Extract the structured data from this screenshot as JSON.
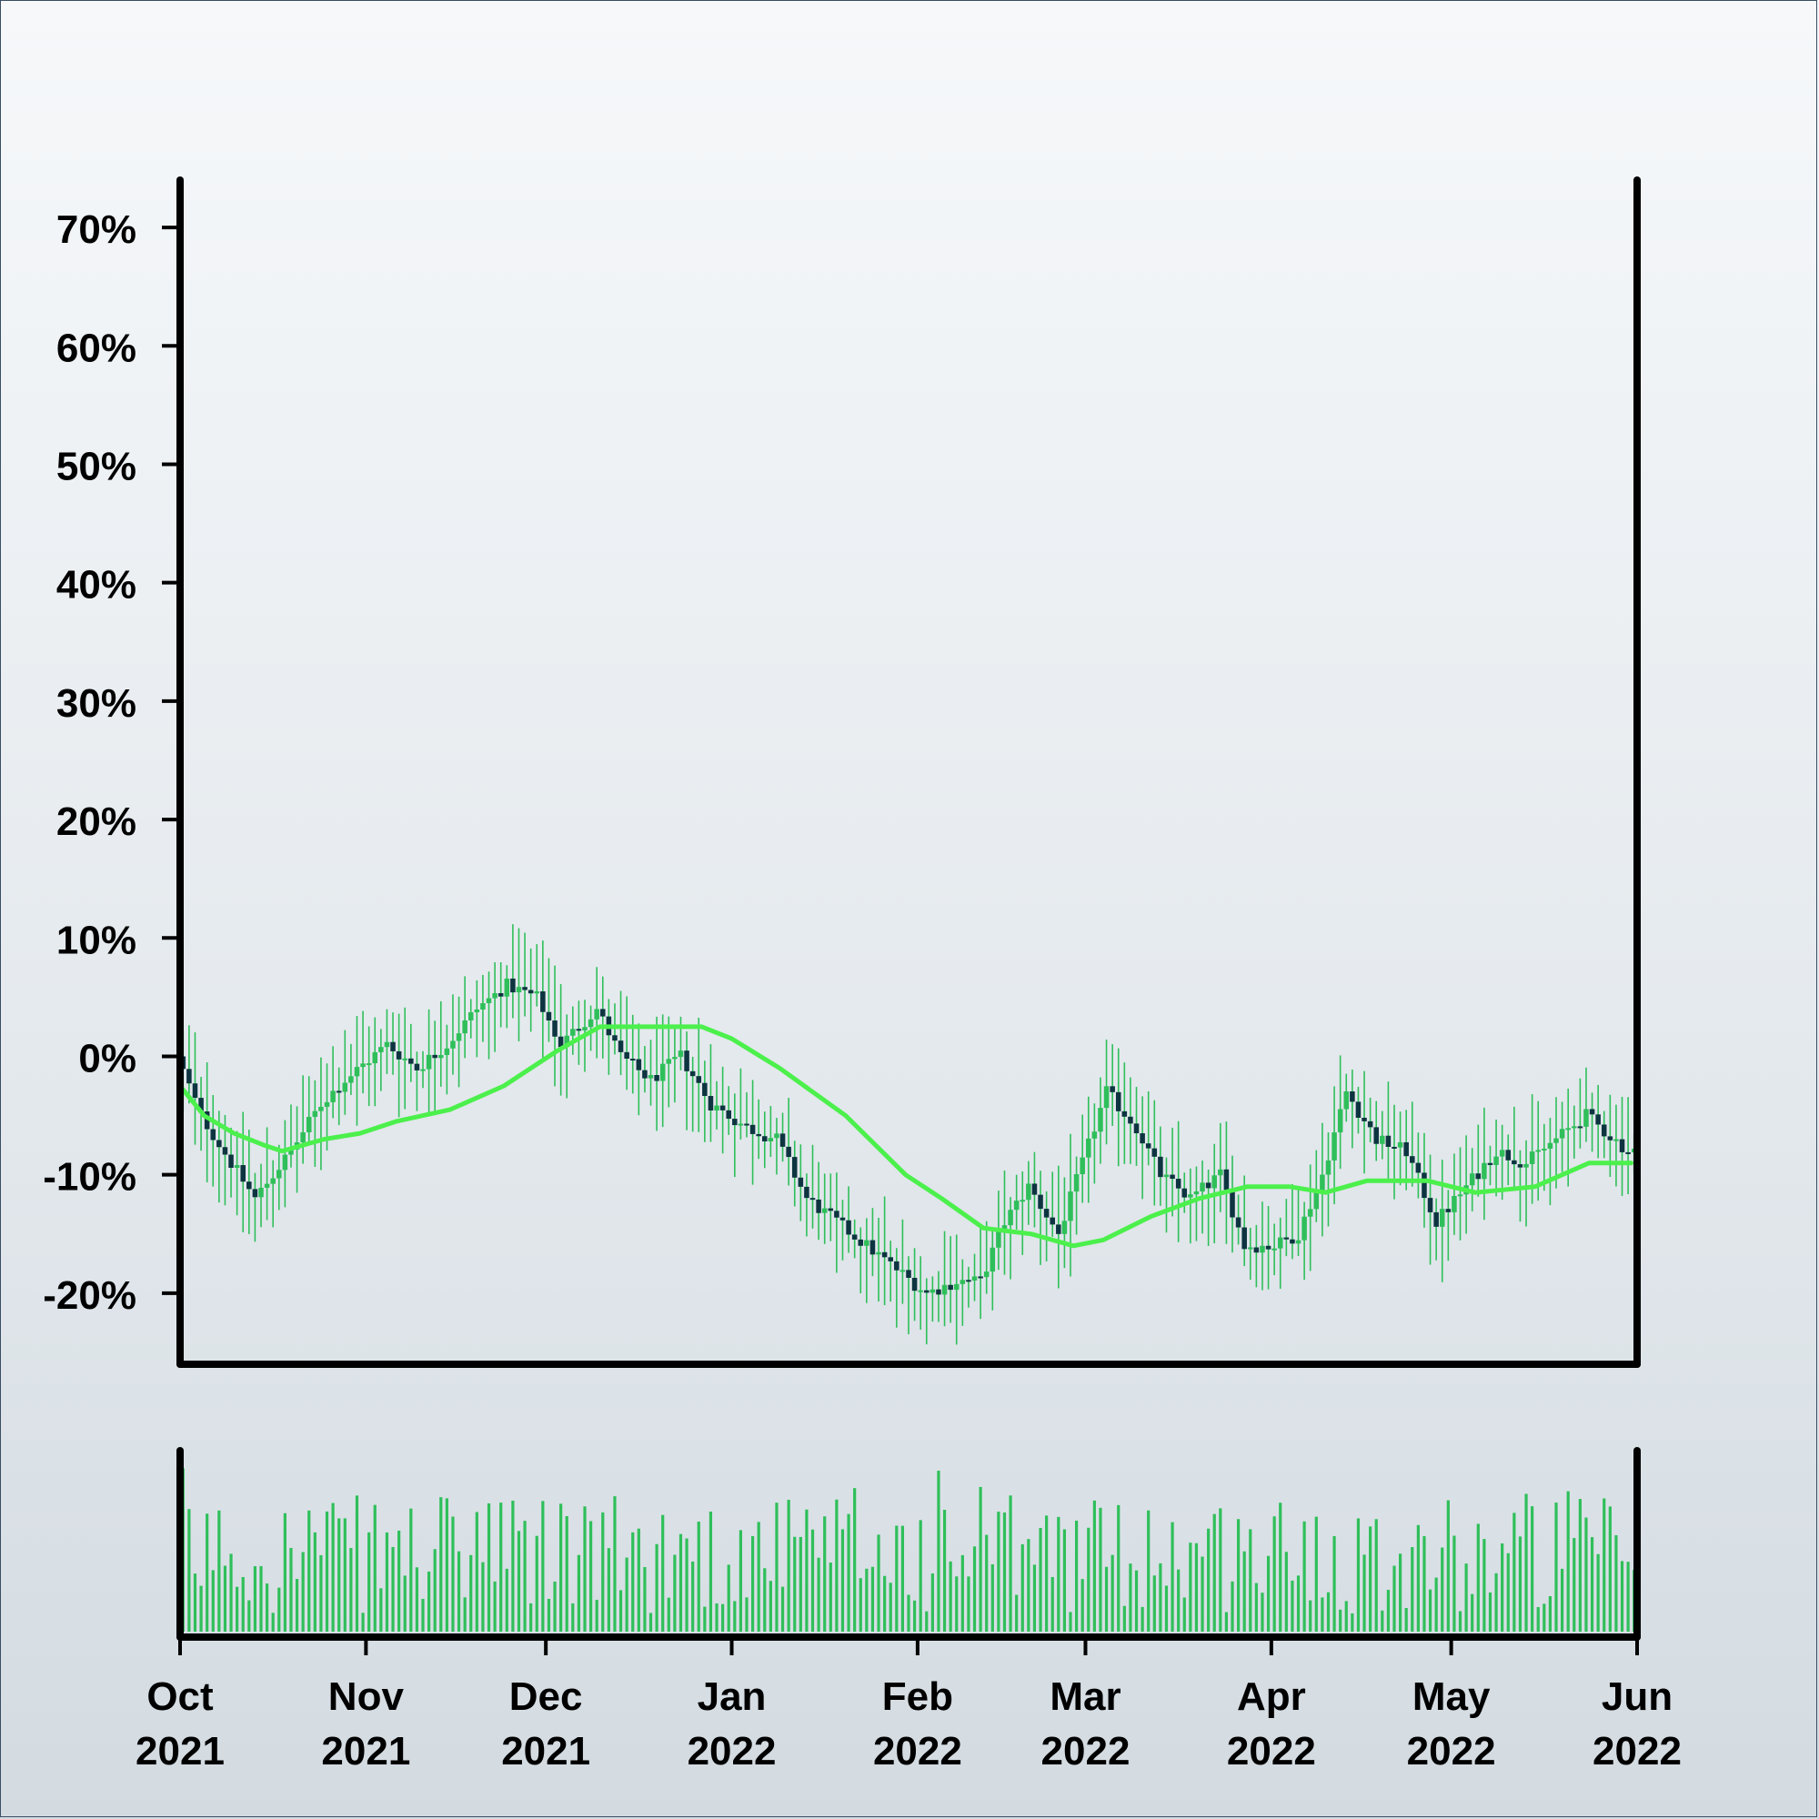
{
  "colors": {
    "candle_up": "#2fbf5a",
    "candle_down": "#0d3440",
    "wick": "#2fbf5a",
    "moving_average": "#4cf04c",
    "volume": "#2fbf5a",
    "axis": "#000000"
  },
  "chart_data": {
    "type": "candlestick",
    "title": "",
    "xlabel": "",
    "ylabel": "",
    "x_range": [
      "2021-10-01",
      "2022-06-01"
    ],
    "ylim": [
      -26,
      74
    ],
    "grid": false,
    "legend": "none",
    "y_ticks": [
      {
        "value": 70,
        "label": "70%"
      },
      {
        "value": 60,
        "label": "60%"
      },
      {
        "value": 50,
        "label": "50%"
      },
      {
        "value": 40,
        "label": "40%"
      },
      {
        "value": 30,
        "label": "30%"
      },
      {
        "value": 20,
        "label": "20%"
      },
      {
        "value": 10,
        "label": "10%"
      },
      {
        "value": 0,
        "label": "0%"
      },
      {
        "value": -10,
        "label": "-10%"
      },
      {
        "value": -20,
        "label": "-20%"
      }
    ],
    "x_ticks": [
      {
        "date": "2021-10-01",
        "month": "Oct",
        "year": "2021"
      },
      {
        "date": "2021-11-01",
        "month": "Nov",
        "year": "2021"
      },
      {
        "date": "2021-12-01",
        "month": "Dec",
        "year": "2021"
      },
      {
        "date": "2022-01-01",
        "month": "Jan",
        "year": "2022"
      },
      {
        "date": "2022-02-01",
        "month": "Feb",
        "year": "2022"
      },
      {
        "date": "2022-03-01",
        "month": "Mar",
        "year": "2022"
      },
      {
        "date": "2022-04-01",
        "month": "Apr",
        "year": "2022"
      },
      {
        "date": "2022-05-01",
        "month": "May",
        "year": "2022"
      },
      {
        "date": "2022-06-01",
        "month": "Jun",
        "year": "2022"
      }
    ],
    "close_trend": [
      [
        "2021-10-01",
        0
      ],
      [
        "2021-10-05",
        -5
      ],
      [
        "2021-10-10",
        -9
      ],
      [
        "2021-10-14",
        -12
      ],
      [
        "2021-10-20",
        -8
      ],
      [
        "2021-10-25",
        -4
      ],
      [
        "2021-10-29",
        -2
      ],
      [
        "2021-11-05",
        1
      ],
      [
        "2021-11-10",
        -1
      ],
      [
        "2021-11-15",
        1
      ],
      [
        "2021-11-20",
        4
      ],
      [
        "2021-11-25",
        6
      ],
      [
        "2021-11-30",
        5
      ],
      [
        "2021-12-04",
        1
      ],
      [
        "2021-12-10",
        4
      ],
      [
        "2021-12-14",
        0
      ],
      [
        "2021-12-19",
        -2
      ],
      [
        "2021-12-24",
        0
      ],
      [
        "2021-12-29",
        -4
      ],
      [
        "2022-01-04",
        -6
      ],
      [
        "2022-01-09",
        -7
      ],
      [
        "2022-01-14",
        -12
      ],
      [
        "2022-01-19",
        -14
      ],
      [
        "2022-01-24",
        -16
      ],
      [
        "2022-01-29",
        -18
      ],
      [
        "2022-02-03",
        -20
      ],
      [
        "2022-02-08",
        -19
      ],
      [
        "2022-02-12",
        -19
      ],
      [
        "2022-02-16",
        -14
      ],
      [
        "2022-02-20",
        -11
      ],
      [
        "2022-02-25",
        -15
      ],
      [
        "2022-03-01",
        -9
      ],
      [
        "2022-03-05",
        -3
      ],
      [
        "2022-03-10",
        -6
      ],
      [
        "2022-03-14",
        -10
      ],
      [
        "2022-03-19",
        -12
      ],
      [
        "2022-03-24",
        -10
      ],
      [
        "2022-03-28",
        -16
      ],
      [
        "2022-04-02",
        -16
      ],
      [
        "2022-04-06",
        -15
      ],
      [
        "2022-04-10",
        -10
      ],
      [
        "2022-04-14",
        -3
      ],
      [
        "2022-04-19",
        -7
      ],
      [
        "2022-04-24",
        -8
      ],
      [
        "2022-04-29",
        -14
      ],
      [
        "2022-05-04",
        -11
      ],
      [
        "2022-05-09",
        -8
      ],
      [
        "2022-05-14",
        -9
      ],
      [
        "2022-05-19",
        -7
      ],
      [
        "2022-05-24",
        -5
      ],
      [
        "2022-05-31",
        -8
      ]
    ],
    "moving_average": [
      [
        "2021-10-01",
        -2.5
      ],
      [
        "2021-10-05",
        -5
      ],
      [
        "2021-10-10",
        -6.5
      ],
      [
        "2021-10-15",
        -7.5
      ],
      [
        "2021-10-18",
        -8
      ],
      [
        "2021-10-25",
        -7
      ],
      [
        "2021-10-31",
        -6.5
      ],
      [
        "2021-11-06",
        -5.5
      ],
      [
        "2021-11-15",
        -4.5
      ],
      [
        "2021-11-24",
        -2.5
      ],
      [
        "2021-12-03",
        0.5
      ],
      [
        "2021-12-10",
        2.5
      ],
      [
        "2021-12-20",
        2.5
      ],
      [
        "2021-12-27",
        2.5
      ],
      [
        "2022-01-01",
        1.5
      ],
      [
        "2022-01-09",
        -1
      ],
      [
        "2022-01-20",
        -5
      ],
      [
        "2022-01-30",
        -10
      ],
      [
        "2022-02-05",
        -12
      ],
      [
        "2022-02-12",
        -14.5
      ],
      [
        "2022-02-20",
        -15
      ],
      [
        "2022-02-27",
        -16
      ],
      [
        "2022-03-04",
        -15.5
      ],
      [
        "2022-03-12",
        -13.5
      ],
      [
        "2022-03-20",
        -12
      ],
      [
        "2022-03-28",
        -11
      ],
      [
        "2022-04-04",
        -11
      ],
      [
        "2022-04-10",
        -11.5
      ],
      [
        "2022-04-17",
        -10.5
      ],
      [
        "2022-04-27",
        -10.5
      ],
      [
        "2022-05-05",
        -11.5
      ],
      [
        "2022-05-15",
        -11
      ],
      [
        "2022-05-24",
        -9
      ],
      [
        "2022-05-31",
        -9
      ]
    ],
    "volume_level": "relative, unlabeled"
  }
}
